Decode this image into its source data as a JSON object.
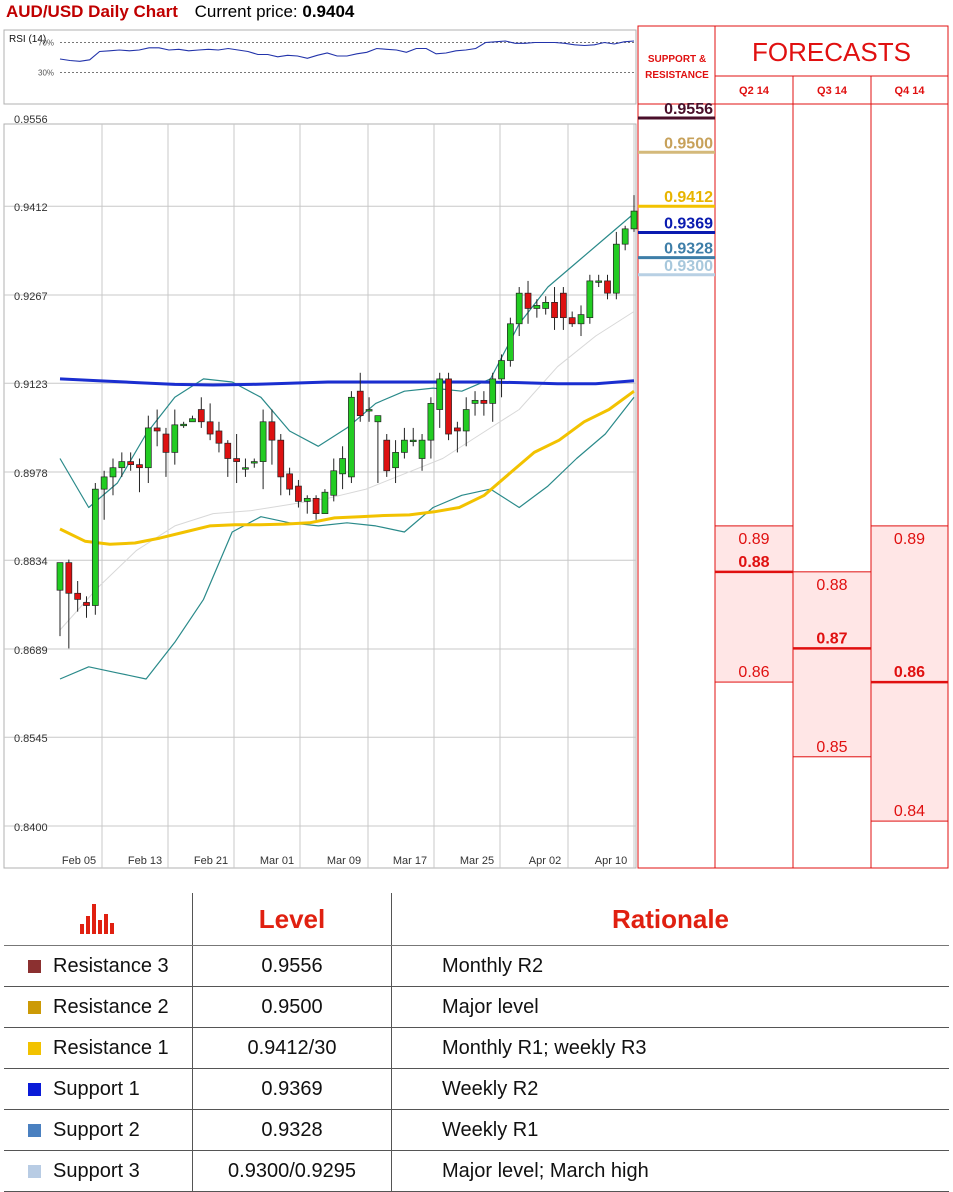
{
  "header": {
    "title": "AUD/USD Daily Chart",
    "price_label": "Current price:",
    "price_value": "0.9404"
  },
  "rsi": {
    "label": "RSI (14)",
    "level_70": "70%",
    "level_30": "30%",
    "values": [
      48,
      46,
      45,
      47,
      58,
      59,
      60,
      59,
      60,
      63,
      63,
      60,
      61,
      59,
      60,
      61,
      60,
      62,
      60,
      58,
      54,
      54,
      51,
      53,
      52,
      49,
      53,
      56,
      52,
      52,
      55,
      57,
      62,
      61,
      60,
      57,
      62,
      62,
      55,
      56,
      59,
      60,
      62,
      70,
      71,
      72,
      69,
      69,
      70,
      70,
      70,
      69,
      67,
      66,
      67,
      70,
      68,
      71,
      72
    ]
  },
  "chart_data": {
    "type": "candlestick",
    "y_axis_ticks": [
      "0.9556",
      "0.9412",
      "0.9267",
      "0.9123",
      "0.8978",
      "0.8834",
      "0.8689",
      "0.8545",
      "0.8400"
    ],
    "ylim": [
      0.84,
      0.9556
    ],
    "x_labels": [
      "Feb 05",
      "Feb 13",
      "Feb 21",
      "Mar 01",
      "Mar 09",
      "Mar 17",
      "Mar 25",
      "Apr 02",
      "Apr 10"
    ],
    "candles": [
      {
        "o": 0.8785,
        "h": 0.883,
        "l": 0.871,
        "c": 0.883
      },
      {
        "o": 0.883,
        "h": 0.8835,
        "l": 0.869,
        "c": 0.878
      },
      {
        "o": 0.878,
        "h": 0.88,
        "l": 0.875,
        "c": 0.877
      },
      {
        "o": 0.8765,
        "h": 0.8775,
        "l": 0.874,
        "c": 0.876
      },
      {
        "o": 0.876,
        "h": 0.896,
        "l": 0.8745,
        "c": 0.895
      },
      {
        "o": 0.895,
        "h": 0.898,
        "l": 0.89,
        "c": 0.897
      },
      {
        "o": 0.897,
        "h": 0.9,
        "l": 0.894,
        "c": 0.8985
      },
      {
        "o": 0.8985,
        "h": 0.901,
        "l": 0.897,
        "c": 0.8995
      },
      {
        "o": 0.8995,
        "h": 0.901,
        "l": 0.898,
        "c": 0.899
      },
      {
        "o": 0.899,
        "h": 0.9,
        "l": 0.8945,
        "c": 0.8985
      },
      {
        "o": 0.8985,
        "h": 0.907,
        "l": 0.896,
        "c": 0.905
      },
      {
        "o": 0.905,
        "h": 0.908,
        "l": 0.902,
        "c": 0.9045
      },
      {
        "o": 0.904,
        "h": 0.905,
        "l": 0.897,
        "c": 0.901
      },
      {
        "o": 0.901,
        "h": 0.908,
        "l": 0.899,
        "c": 0.9055
      },
      {
        "o": 0.9055,
        "h": 0.906,
        "l": 0.905,
        "c": 0.9056
      },
      {
        "o": 0.906,
        "h": 0.907,
        "l": 0.906,
        "c": 0.9065
      },
      {
        "o": 0.908,
        "h": 0.91,
        "l": 0.905,
        "c": 0.906
      },
      {
        "o": 0.906,
        "h": 0.909,
        "l": 0.903,
        "c": 0.904
      },
      {
        "o": 0.9045,
        "h": 0.906,
        "l": 0.901,
        "c": 0.9025
      },
      {
        "o": 0.9025,
        "h": 0.903,
        "l": 0.897,
        "c": 0.9
      },
      {
        "o": 0.9,
        "h": 0.904,
        "l": 0.896,
        "c": 0.8995
      },
      {
        "o": 0.8985,
        "h": 0.9,
        "l": 0.897,
        "c": 0.8985
      },
      {
        "o": 0.8995,
        "h": 0.9,
        "l": 0.8985,
        "c": 0.8995
      },
      {
        "o": 0.8995,
        "h": 0.908,
        "l": 0.895,
        "c": 0.906
      },
      {
        "o": 0.906,
        "h": 0.908,
        "l": 0.899,
        "c": 0.903
      },
      {
        "o": 0.903,
        "h": 0.904,
        "l": 0.894,
        "c": 0.897
      },
      {
        "o": 0.8975,
        "h": 0.8985,
        "l": 0.894,
        "c": 0.895
      },
      {
        "o": 0.8955,
        "h": 0.8965,
        "l": 0.892,
        "c": 0.893
      },
      {
        "o": 0.893,
        "h": 0.894,
        "l": 0.891,
        "c": 0.8935
      },
      {
        "o": 0.8935,
        "h": 0.894,
        "l": 0.89,
        "c": 0.891
      },
      {
        "o": 0.891,
        "h": 0.895,
        "l": 0.891,
        "c": 0.8945
      },
      {
        "o": 0.894,
        "h": 0.9,
        "l": 0.893,
        "c": 0.898
      },
      {
        "o": 0.8975,
        "h": 0.902,
        "l": 0.895,
        "c": 0.9
      },
      {
        "o": 0.897,
        "h": 0.911,
        "l": 0.896,
        "c": 0.91
      },
      {
        "o": 0.911,
        "h": 0.914,
        "l": 0.906,
        "c": 0.907
      },
      {
        "o": 0.908,
        "h": 0.91,
        "l": 0.906,
        "c": 0.908
      },
      {
        "o": 0.906,
        "h": 0.907,
        "l": 0.896,
        "c": 0.907
      },
      {
        "o": 0.903,
        "h": 0.904,
        "l": 0.897,
        "c": 0.898
      },
      {
        "o": 0.8985,
        "h": 0.903,
        "l": 0.896,
        "c": 0.901
      },
      {
        "o": 0.901,
        "h": 0.905,
        "l": 0.9,
        "c": 0.903
      },
      {
        "o": 0.903,
        "h": 0.905,
        "l": 0.902,
        "c": 0.903
      },
      {
        "o": 0.9,
        "h": 0.904,
        "l": 0.898,
        "c": 0.903
      },
      {
        "o": 0.903,
        "h": 0.91,
        "l": 0.9,
        "c": 0.909
      },
      {
        "o": 0.908,
        "h": 0.914,
        "l": 0.905,
        "c": 0.913
      },
      {
        "o": 0.913,
        "h": 0.914,
        "l": 0.903,
        "c": 0.904
      },
      {
        "o": 0.905,
        "h": 0.906,
        "l": 0.901,
        "c": 0.9045
      },
      {
        "o": 0.9045,
        "h": 0.91,
        "l": 0.902,
        "c": 0.908
      },
      {
        "o": 0.909,
        "h": 0.911,
        "l": 0.907,
        "c": 0.9095
      },
      {
        "o": 0.9095,
        "h": 0.911,
        "l": 0.907,
        "c": 0.909
      },
      {
        "o": 0.909,
        "h": 0.914,
        "l": 0.906,
        "c": 0.913
      },
      {
        "o": 0.913,
        "h": 0.917,
        "l": 0.91,
        "c": 0.916
      },
      {
        "o": 0.916,
        "h": 0.923,
        "l": 0.915,
        "c": 0.922
      },
      {
        "o": 0.922,
        "h": 0.928,
        "l": 0.92,
        "c": 0.927
      },
      {
        "o": 0.927,
        "h": 0.929,
        "l": 0.922,
        "c": 0.9245
      },
      {
        "o": 0.9245,
        "h": 0.926,
        "l": 0.923,
        "c": 0.925
      },
      {
        "o": 0.9245,
        "h": 0.9265,
        "l": 0.9235,
        "c": 0.9255
      },
      {
        "o": 0.9255,
        "h": 0.928,
        "l": 0.921,
        "c": 0.923
      },
      {
        "o": 0.927,
        "h": 0.928,
        "l": 0.921,
        "c": 0.923
      },
      {
        "o": 0.923,
        "h": 0.924,
        "l": 0.9215,
        "c": 0.922
      },
      {
        "o": 0.922,
        "h": 0.925,
        "l": 0.92,
        "c": 0.9235
      },
      {
        "o": 0.923,
        "h": 0.93,
        "l": 0.922,
        "c": 0.929
      },
      {
        "o": 0.929,
        "h": 0.93,
        "l": 0.928,
        "c": 0.929
      },
      {
        "o": 0.929,
        "h": 0.93,
        "l": 0.926,
        "c": 0.927
      },
      {
        "o": 0.927,
        "h": 0.937,
        "l": 0.926,
        "c": 0.935
      },
      {
        "o": 0.935,
        "h": 0.938,
        "l": 0.934,
        "c": 0.9375
      },
      {
        "o": 0.9375,
        "h": 0.943,
        "l": 0.937,
        "c": 0.9404
      }
    ],
    "ma_200": [
      0.913,
      0.9127,
      0.9124,
      0.9121,
      0.912,
      0.9121,
      0.9123,
      0.9125,
      0.9125,
      0.9125,
      0.9125,
      0.9125,
      0.9124,
      0.9122,
      0.9122,
      0.9127
    ],
    "ma_50": [
      0.8885,
      0.8865,
      0.886,
      0.8862,
      0.887,
      0.888,
      0.889,
      0.8892,
      0.8892,
      0.8893,
      0.8895,
      0.8903,
      0.8905,
      0.8907,
      0.8908,
      0.8913,
      0.892,
      0.894,
      0.8975,
      0.901,
      0.903,
      0.906,
      0.908,
      0.911
    ],
    "ma_20": [
      0.872,
      0.879,
      0.885,
      0.889,
      0.891,
      0.8915,
      0.8925,
      0.8935,
      0.895,
      0.8975,
      0.9,
      0.904,
      0.908,
      0.915,
      0.92,
      0.924
    ],
    "bb_upper": [
      0.9,
      0.892,
      0.896,
      0.904,
      0.91,
      0.913,
      0.9125,
      0.91,
      0.9045,
      0.902,
      0.905,
      0.909,
      0.911,
      0.9115,
      0.911,
      0.913,
      0.922,
      0.928,
      0.932,
      0.936,
      0.94
    ],
    "bb_lower": [
      0.864,
      0.866,
      0.865,
      0.864,
      0.87,
      0.877,
      0.888,
      0.8905,
      0.8895,
      0.889,
      0.8895,
      0.889,
      0.888,
      0.892,
      0.894,
      0.895,
      0.892,
      0.8955,
      0.9,
      0.904,
      0.91
    ]
  },
  "sr": {
    "header": "SUPPORT & RESISTANCE",
    "levels": [
      {
        "value": "0.9556",
        "num": 0.9556,
        "color": "#4a0f2a",
        "text": "#4a0f2a"
      },
      {
        "value": "0.9500",
        "num": 0.95,
        "color": "#d4b97a",
        "text": "#c7a15a"
      },
      {
        "value": "0.9412",
        "num": 0.9412,
        "color": "#f2c200",
        "text": "#e8b400"
      },
      {
        "value": "0.9369",
        "num": 0.9369,
        "color": "#0a1bb0",
        "text": "#0a1bb0"
      },
      {
        "value": "0.9328",
        "num": 0.9328,
        "color": "#3e7ea8",
        "text": "#3e7ea8"
      },
      {
        "value": "0.9300",
        "num": 0.93,
        "color": "#b8d0e4",
        "text": "#a8c8dc"
      }
    ]
  },
  "forecasts": {
    "title": "FORECASTS",
    "columns": [
      {
        "label": "Q2 14",
        "high": "0.89",
        "mid": "0.88",
        "low": "0.86",
        "high_num": 0.889,
        "mid_num": 0.8815,
        "low_num": 0.8635
      },
      {
        "label": "Q3 14",
        "high": "0.88",
        "mid": "0.87",
        "low": "0.85",
        "high_num": 0.8815,
        "mid_num": 0.869,
        "low_num": 0.8513
      },
      {
        "label": "Q4 14",
        "high": "0.89",
        "mid": "0.86",
        "low": "0.84",
        "high_num": 0.889,
        "mid_num": 0.8635,
        "low_num": 0.8408
      }
    ]
  },
  "table": {
    "headers": {
      "level": "Level",
      "rationale": "Rationale"
    },
    "rows": [
      {
        "name": "Resistance 3",
        "level": "0.9556",
        "rationale": "Monthly R2",
        "color": "#8b3030"
      },
      {
        "name": "Resistance 2",
        "level": "0.9500",
        "rationale": "Major level",
        "color": "#cc9a06"
      },
      {
        "name": "Resistance 1",
        "level": "0.9412/30",
        "rationale": "Monthly R1; weekly R3",
        "color": "#f2c200"
      },
      {
        "name": "Support 1",
        "level": "0.9369",
        "rationale": "Weekly R2",
        "color": "#0a1bd8"
      },
      {
        "name": "Support 2",
        "level": "0.9328",
        "rationale": "Weekly R1",
        "color": "#4a80c0"
      },
      {
        "name": "Support 3",
        "level": "0.9300/0.9295",
        "rationale": "Major level; March high",
        "color": "#b8cce4"
      }
    ]
  }
}
